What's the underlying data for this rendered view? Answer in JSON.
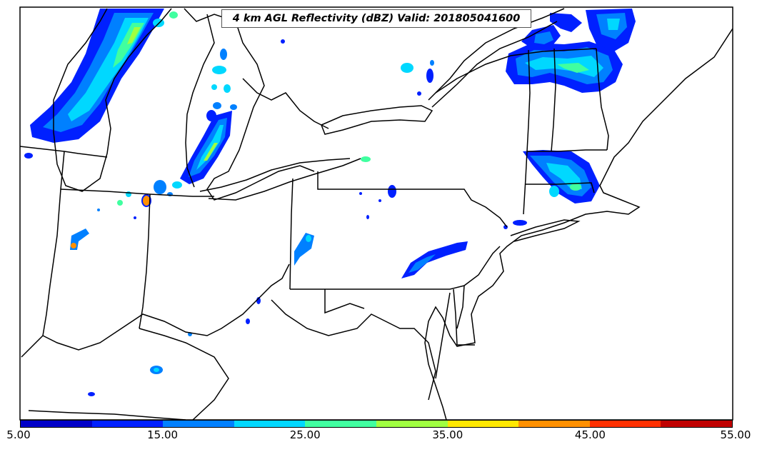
{
  "map": {
    "title": "4 km AGL Reflectivity (dBZ) Valid: 201805041600"
  },
  "colorbar": {
    "colors": [
      "#0000c8",
      "#0020ff",
      "#0080ff",
      "#00d8ff",
      "#40ffa0",
      "#a0ff40",
      "#ffe800",
      "#ff9000",
      "#ff3000",
      "#c00000"
    ],
    "ticks": [
      "5.00",
      "15.00",
      "25.00",
      "35.00",
      "45.00",
      "55.00"
    ],
    "min": 5,
    "max": 55
  }
}
